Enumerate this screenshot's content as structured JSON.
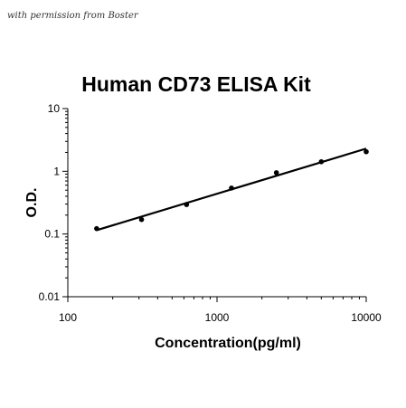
{
  "watermark": "with permission from Boster",
  "chart_data": {
    "type": "scatter",
    "title": "Human CD73 ELISA Kit",
    "xlabel": "Concentration(pg/ml)",
    "ylabel": "O.D.",
    "x_scale": "log",
    "y_scale": "log",
    "xlim": [
      100,
      10000
    ],
    "ylim": [
      0.01,
      10
    ],
    "x_tick_values": [
      100,
      1000,
      10000
    ],
    "x_tick_labels": [
      "100",
      "1000",
      "10000"
    ],
    "y_tick_values": [
      0.01,
      0.1,
      1,
      10
    ],
    "y_tick_labels": [
      "0.01",
      "0.1",
      "1",
      "10"
    ],
    "grid": false,
    "legend": "none",
    "points": {
      "x": [
        156,
        312,
        625,
        1250,
        2500,
        5000,
        10000
      ],
      "y": [
        0.122,
        0.17,
        0.295,
        0.54,
        0.95,
        1.42,
        2.05
      ]
    },
    "trendline": {
      "type": "power",
      "x_range": [
        156,
        10000
      ],
      "y_range": [
        0.115,
        2.3
      ]
    },
    "colors": {
      "points": "#000000",
      "line": "#000000"
    }
  }
}
